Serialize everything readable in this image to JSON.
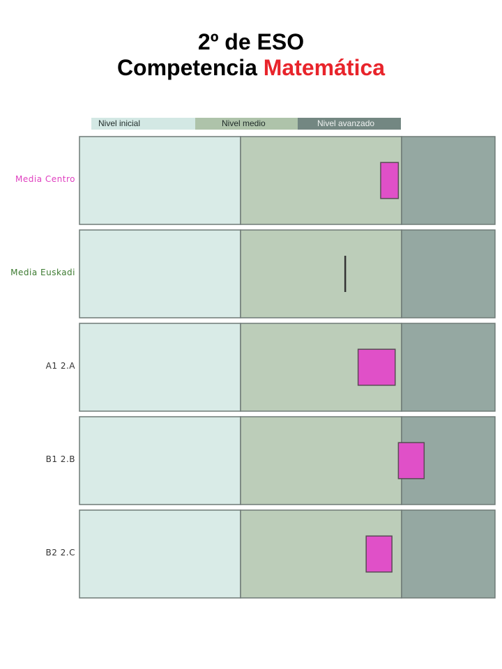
{
  "header": {
    "title_line1": "2º de ESO",
    "title_prefix": "Competencia",
    "title_accent": "Matemática"
  },
  "colors": {
    "inicial": "#d9ebe7",
    "medio": "#bccdb9",
    "avanzado": "#95a8a2",
    "legend_inicial": "#d3e8e4",
    "legend_medio": "#aec3aa",
    "legend_avanzado": "#738782",
    "marker": "#e050c8",
    "euskadi_line": "#333333",
    "title_accent": "#e8242b"
  },
  "chart_data": {
    "type": "bar",
    "legend": [
      "Nivel inicial",
      "Nivel medio",
      "Nivel avanzado"
    ],
    "levels": [
      {
        "name": "Nivel inicial",
        "from": 0,
        "to": 1
      },
      {
        "name": "Nivel medio",
        "from": 1,
        "to": 2
      },
      {
        "name": "Nivel avanzado",
        "from": 2,
        "to": 2.58
      }
    ],
    "rows": [
      {
        "label": "Media Centro",
        "label_color": "#e040c0",
        "kind": "box",
        "low": 1.87,
        "high": 1.98,
        "box_height": 0.41
      },
      {
        "label": "Media Euskadi",
        "label_color": "#3c7a30",
        "kind": "line",
        "value": 1.65
      },
      {
        "label": "A1  2.A",
        "label_color": "#333333",
        "kind": "box",
        "low": 1.73,
        "high": 1.96,
        "box_height": 0.41
      },
      {
        "label": "B1  2.B",
        "label_color": "#333333",
        "kind": "box",
        "low": 1.98,
        "high": 2.14,
        "box_height": 0.41
      },
      {
        "label": "B2  2.C",
        "label_color": "#333333",
        "kind": "box",
        "low": 1.78,
        "high": 1.94,
        "box_height": 0.41
      }
    ]
  }
}
